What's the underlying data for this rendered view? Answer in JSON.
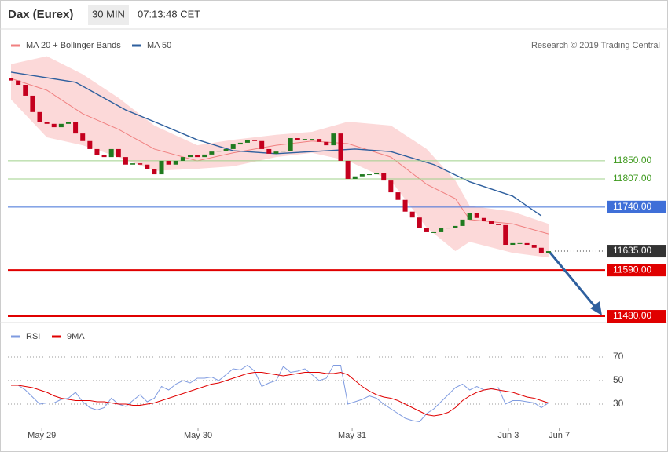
{
  "header": {
    "title": "Dax (Eurex)",
    "timeframe": "30 MIN",
    "time": "07:13:48 CET"
  },
  "chart_data": [
    {
      "type": "candlestick",
      "credit": "Research © 2019 Trading Central",
      "xlim": [
        -0.44,
        82.9
      ],
      "ylim": [
        11467,
        12102
      ],
      "up_color": "#1f7a1f",
      "down_color": "#c4001e",
      "open": 12046,
      "close": [
        12041,
        12031,
        12005,
        11966,
        11943,
        11938,
        11930,
        11938,
        11943,
        11915,
        11897,
        11878,
        11863,
        11859,
        11878,
        11859,
        11841,
        11844,
        11841,
        11831,
        11818,
        11850,
        11841,
        11850,
        11859,
        11863,
        11859,
        11865,
        11872,
        11874,
        11878,
        11889,
        11893,
        11900,
        11897,
        11878,
        11867,
        11872,
        11874,
        11904,
        11899,
        11902,
        11902,
        11895,
        11887,
        11915,
        11850,
        11807,
        11813,
        11818,
        11818,
        11820,
        11803,
        11775,
        11757,
        11729,
        11715,
        11691,
        11680,
        11680,
        11691,
        11691,
        11695,
        11710,
        11725,
        11714,
        11706,
        11700,
        11697,
        11650,
        11654,
        11654,
        11650,
        11643,
        11631,
        11635
      ],
      "series": [
        {
          "name": "MA 20 + Bollinger Bands",
          "color": "#f08080",
          "band_color": "#fcd9d9",
          "x": [
            0,
            5,
            10,
            15,
            20,
            26,
            31,
            37,
            42,
            47,
            53,
            58,
            62,
            64,
            70,
            75
          ],
          "values": [
            12046,
            12018,
            11962,
            11925,
            11878,
            11850,
            11869,
            11887,
            11897,
            11891,
            11859,
            11794,
            11760,
            11710,
            11700,
            11676
          ],
          "upper": [
            12080,
            12099,
            12056,
            12000,
            11934,
            11887,
            11900,
            11912,
            11919,
            11943,
            11934,
            11878,
            11803,
            11743,
            11729,
            11700
          ],
          "lower": [
            11996,
            11906,
            11887,
            11859,
            11826,
            11831,
            11837,
            11859,
            11869,
            11850,
            11803,
            11691,
            11635,
            11657,
            11631,
            11620
          ]
        },
        {
          "name": "MA 50",
          "color": "#2e5f9e",
          "x": [
            0,
            9,
            16,
            20,
            26,
            31,
            37,
            42,
            48,
            53,
            59,
            64,
            70,
            74
          ],
          "values": [
            12061,
            12037,
            11971,
            11943,
            11900,
            11874,
            11867,
            11872,
            11878,
            11872,
            11841,
            11800,
            11766,
            11719
          ]
        }
      ],
      "levels": [
        {
          "value": 11850,
          "label": "11850.00",
          "color": "#9fd08a",
          "text_color": "#3f9a1f",
          "line": "solid",
          "label_style": "text"
        },
        {
          "value": 11807,
          "label": "11807.00",
          "color": "#9fd08a",
          "text_color": "#3f9a1f",
          "line": "solid",
          "label_style": "text"
        },
        {
          "value": 11740,
          "label": "11740.00",
          "color": "#3f6fd8",
          "text_color": "#ffffff",
          "line": "solid",
          "label_style": "box"
        },
        {
          "value": 11635,
          "label": "11635.00",
          "color": "#333333",
          "text_color": "#ffffff",
          "line": "dotted",
          "label_style": "box"
        },
        {
          "value": 11590,
          "label": "11590.00",
          "color": "#e00000",
          "text_color": "#ffffff",
          "line": "solid",
          "label_style": "box"
        },
        {
          "value": 11480,
          "label": "11480.00",
          "color": "#e00000",
          "text_color": "#ffffff",
          "line": "solid",
          "label_style": "box"
        }
      ]
    },
    {
      "type": "line",
      "xlim": [
        -0.44,
        82.9
      ],
      "ylim": [
        10,
        82
      ],
      "yticks": [
        30,
        50,
        70
      ],
      "xticks": [
        {
          "value": 4.3,
          "label": "May 29"
        },
        {
          "value": 26.1,
          "label": "May 30"
        },
        {
          "value": 47.6,
          "label": "May 31"
        },
        {
          "value": 69.4,
          "label": "Jun 3"
        },
        {
          "value": 76.5,
          "label": "Jun 7"
        }
      ],
      "series": [
        {
          "name": "RSI",
          "color": "#7f9be0",
          "values": [
            46,
            46,
            42,
            36,
            30,
            31,
            31,
            34,
            35,
            40,
            32,
            27,
            25,
            27,
            35,
            30,
            28,
            33,
            38,
            32,
            35,
            45,
            42,
            47,
            50,
            48,
            52,
            52,
            53,
            50,
            55,
            60,
            59,
            63,
            58,
            45,
            48,
            50,
            62,
            57,
            58,
            60,
            55,
            50,
            52,
            63,
            63,
            30,
            32,
            34,
            37,
            35,
            30,
            26,
            22,
            18,
            16,
            15,
            22,
            26,
            32,
            38,
            44,
            47,
            42,
            45,
            42,
            43,
            44,
            30,
            33,
            33,
            32,
            31,
            27,
            31
          ]
        },
        {
          "name": "9MA",
          "color": "#e00000",
          "values": [
            46,
            46,
            45,
            44,
            42,
            40,
            37,
            35,
            34,
            33,
            33,
            33,
            32,
            32,
            31,
            30,
            30,
            29,
            29,
            30,
            31,
            33,
            35,
            37,
            39,
            41,
            43,
            45,
            47,
            48,
            50,
            52,
            54,
            56,
            57,
            57,
            56,
            55,
            54,
            55,
            56,
            57,
            57,
            57,
            56,
            56,
            57,
            55,
            50,
            45,
            41,
            38,
            36,
            35,
            33,
            30,
            27,
            24,
            21,
            20,
            21,
            23,
            27,
            33,
            37,
            40,
            42,
            43,
            42,
            41,
            40,
            38,
            36,
            35,
            33,
            31
          ]
        }
      ]
    }
  ]
}
